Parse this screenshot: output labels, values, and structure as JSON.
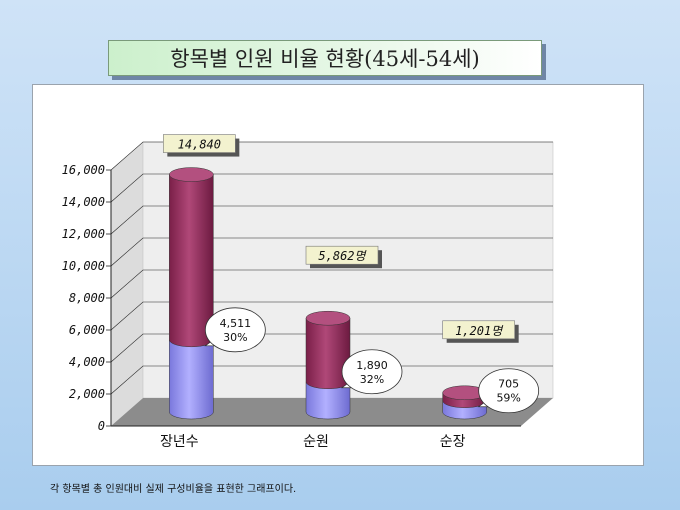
{
  "title": "항목별 인원 비율 현황(45세-54세)",
  "caption": "각 항목별 총 인원대비 실제 구성비율을 표현한 그래프이다.",
  "colors": {
    "bar_top": "#9b2f5f",
    "bar_bottom": "#8f8cf0",
    "floor": "#8c8c8c",
    "wall": "#eeeeee",
    "total_label_bg": "#f3f2cf"
  },
  "chart_data": {
    "type": "bar",
    "stacked": true,
    "three_d": true,
    "categories": [
      "장년수",
      "순원",
      "순장"
    ],
    "series": [
      {
        "values": [
          4511,
          1890,
          705
        ]
      },
      {
        "values": [
          10329,
          3972,
          496
        ]
      }
    ],
    "totals": [
      14840,
      5862,
      1201
    ],
    "total_labels": [
      "14,840",
      "5,862명",
      "1,201명"
    ],
    "ratio_labels": [
      {
        "value": "4,511",
        "pct": "30%"
      },
      {
        "value": "1,890",
        "pct": "32%"
      },
      {
        "value": "705",
        "pct": "59%"
      }
    ],
    "ylim": [
      0,
      16000
    ],
    "yticks": [
      0,
      2000,
      4000,
      6000,
      8000,
      10000,
      12000,
      14000,
      16000
    ],
    "ytick_labels": [
      "0",
      "2,000",
      "4,000",
      "6,000",
      "8,000",
      "10,000",
      "12,000",
      "14,000",
      "16,000"
    ],
    "grid": true,
    "legend": "none"
  }
}
